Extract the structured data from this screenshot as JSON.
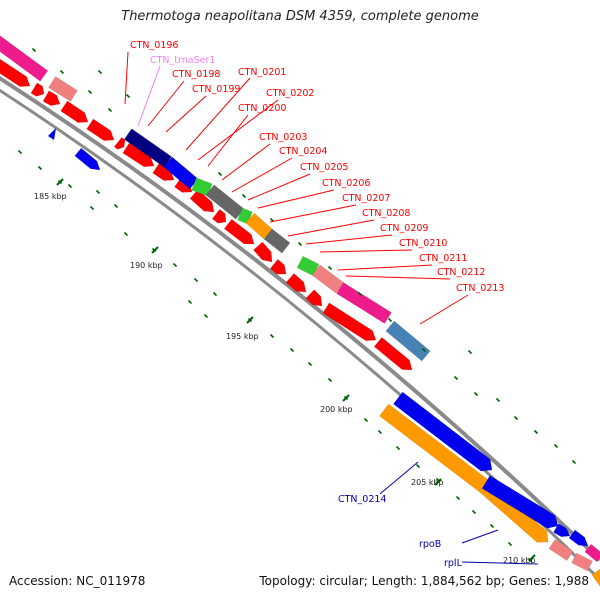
{
  "title": "Thermotoga neapolitana DSM 4359, complete genome",
  "footer": {
    "accession": "Accession: NC_011978",
    "topology": "Topology: circular; Length: 1,884,562 bp; Genes: 1,988"
  },
  "kbp_labels": [
    "185 kbp",
    "190 kbp",
    "195 kbp",
    "200 kbp",
    "205 kbp",
    "210 kbp"
  ],
  "gene_labels_red": [
    "CTN_0196",
    "CTN_0198",
    "CTN_0199",
    "CTN_0201",
    "CTN_0202",
    "CTN_0200",
    "CTN_0203",
    "CTN_0204",
    "CTN_0205",
    "CTN_0206",
    "CTN_0207",
    "CTN_0208",
    "CTN_0209",
    "CTN_0210",
    "CTN_0211",
    "CTN_0212",
    "CTN_0213"
  ],
  "gene_label_trna": "CTN_trnaSer1",
  "gene_labels_blue": [
    "CTN_0214",
    "rpoB",
    "rplL"
  ],
  "colors": {
    "red": "#ff0000",
    "blue": "#0000ee",
    "pink": "#ee1b8c",
    "salmon": "#f08080",
    "gray": "#666666",
    "green": "#33cc33",
    "orange": "#ff9900",
    "steel": "#4682b4",
    "navy": "#000080",
    "tick": "#006400",
    "trna": "#ee82ee"
  }
}
